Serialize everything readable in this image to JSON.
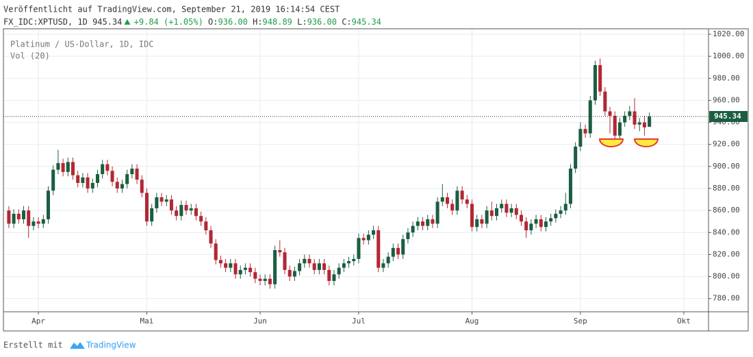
{
  "header": {
    "published": "Veröffentlicht auf TradingView.com, September 21, 2019 16:14:54 CEST",
    "symbol": "FX_IDC:XPTUSD, 1D",
    "change": "+9.84 (+1.05%)",
    "ohlc": [
      [
        "O:",
        "936.00"
      ],
      [
        "H:",
        "948.89"
      ],
      [
        "L:",
        "936.00"
      ],
      [
        "C:",
        "945.34"
      ]
    ]
  },
  "footer": {
    "prefix": "Erstellt mit",
    "brand": "TradingView"
  },
  "chart_data": {
    "type": "candlestick",
    "title": "Platinum / US-Dollar, 1D, IDC",
    "subtitle": "Vol (20)",
    "up_color": "#1b5e42",
    "down_color": "#b22833",
    "grid": true,
    "last_price": 945.34,
    "x": [
      0,
      1,
      2,
      3,
      4,
      5,
      6,
      7,
      8,
      9,
      10,
      11,
      12,
      13,
      14,
      15,
      16,
      17,
      18,
      19,
      20,
      21,
      22,
      23,
      24,
      25,
      26,
      27,
      28,
      29,
      30,
      31,
      32,
      33,
      34,
      35,
      36,
      37,
      38,
      39,
      40,
      41,
      42,
      43,
      44,
      45,
      46,
      47,
      48,
      49,
      50,
      51,
      52,
      53,
      54,
      55,
      56,
      57,
      58,
      59,
      60,
      61,
      62,
      63,
      64,
      65,
      66,
      67,
      68,
      69,
      70,
      71,
      72,
      73,
      74,
      75,
      76,
      77,
      78,
      79,
      80,
      81,
      82,
      83,
      84,
      85,
      86,
      87,
      88,
      89,
      90,
      91,
      92,
      93,
      94,
      95,
      96,
      97,
      98,
      99,
      100,
      101,
      102,
      103,
      104,
      105,
      106,
      107,
      108,
      109,
      110,
      111,
      112,
      113,
      114,
      115,
      116,
      117,
      118,
      119,
      120,
      121,
      122,
      123,
      124,
      125,
      126,
      127,
      128,
      129,
      130
    ],
    "open": [
      860,
      848,
      857,
      852,
      860,
      846,
      850,
      848,
      852,
      878,
      897,
      903,
      895,
      904,
      892,
      885,
      890,
      880,
      885,
      893,
      902,
      896,
      886,
      880,
      884,
      893,
      898,
      888,
      876,
      850,
      862,
      872,
      868,
      870,
      860,
      855,
      865,
      860,
      862,
      855,
      850,
      842,
      830,
      815,
      812,
      808,
      812,
      802,
      806,
      808,
      804,
      798,
      796,
      798,
      793,
      824,
      822,
      806,
      800,
      805,
      812,
      816,
      812,
      806,
      812,
      806,
      796,
      802,
      808,
      812,
      814,
      816,
      835,
      833,
      838,
      842,
      808,
      812,
      818,
      826,
      820,
      834,
      840,
      846,
      850,
      846,
      852,
      848,
      868,
      872,
      866,
      860,
      878,
      870,
      866,
      845,
      852,
      848,
      860,
      855,
      862,
      866,
      858,
      862,
      856,
      850,
      842,
      848,
      852,
      845,
      850,
      853,
      857,
      860,
      866,
      898,
      918,
      934,
      930,
      960,
      992,
      968,
      950,
      946,
      928,
      940,
      946,
      950,
      938,
      940,
      936
    ],
    "high": [
      864,
      861,
      861,
      864,
      864,
      854,
      854,
      856,
      882,
      901,
      915,
      907,
      908,
      908,
      896,
      894,
      894,
      889,
      897,
      906,
      906,
      900,
      890,
      888,
      897,
      902,
      902,
      892,
      880,
      866,
      876,
      876,
      874,
      874,
      864,
      869,
      869,
      866,
      866,
      859,
      854,
      846,
      834,
      819,
      816,
      816,
      816,
      810,
      812,
      812,
      808,
      802,
      802,
      802,
      828,
      833,
      826,
      810,
      809,
      816,
      820,
      820,
      816,
      816,
      816,
      810,
      806,
      812,
      816,
      818,
      820,
      839,
      839,
      842,
      846,
      846,
      816,
      822,
      830,
      830,
      838,
      844,
      850,
      854,
      854,
      856,
      856,
      872,
      884,
      876,
      870,
      882,
      882,
      874,
      870,
      856,
      856,
      864,
      868,
      866,
      870,
      870,
      866,
      866,
      860,
      854,
      852,
      856,
      856,
      854,
      857,
      861,
      864,
      876,
      902,
      922,
      940,
      938,
      964,
      996,
      998,
      972,
      954,
      950,
      944,
      950,
      955,
      962,
      944,
      946,
      948.89
    ],
    "low": [
      844,
      844,
      848,
      848,
      835,
      842,
      844,
      844,
      848,
      874,
      893,
      891,
      891,
      888,
      881,
      881,
      876,
      876,
      881,
      889,
      892,
      882,
      876,
      876,
      880,
      889,
      884,
      872,
      846,
      846,
      858,
      864,
      864,
      856,
      851,
      851,
      856,
      856,
      851,
      846,
      838,
      826,
      811,
      808,
      804,
      804,
      798,
      798,
      802,
      800,
      794,
      792,
      792,
      789,
      789,
      818,
      802,
      796,
      796,
      801,
      808,
      808,
      802,
      802,
      802,
      792,
      792,
      798,
      804,
      808,
      810,
      812,
      829,
      829,
      834,
      804,
      804,
      808,
      814,
      816,
      816,
      830,
      836,
      842,
      842,
      842,
      844,
      844,
      864,
      862,
      856,
      856,
      866,
      862,
      841,
      841,
      844,
      844,
      851,
      851,
      858,
      854,
      854,
      852,
      846,
      835,
      838,
      844,
      841,
      841,
      846,
      849,
      853,
      856,
      862,
      894,
      914,
      926,
      926,
      956,
      964,
      946,
      930,
      924,
      924,
      936,
      942,
      934,
      932,
      928,
      936
    ],
    "close": [
      848,
      857,
      852,
      860,
      846,
      850,
      848,
      852,
      878,
      897,
      903,
      895,
      904,
      892,
      885,
      890,
      880,
      885,
      893,
      902,
      896,
      886,
      880,
      884,
      893,
      898,
      888,
      876,
      850,
      862,
      872,
      868,
      870,
      860,
      855,
      865,
      860,
      862,
      855,
      850,
      842,
      830,
      815,
      812,
      808,
      812,
      802,
      806,
      808,
      804,
      798,
      796,
      798,
      793,
      824,
      822,
      806,
      800,
      805,
      812,
      816,
      812,
      806,
      812,
      806,
      796,
      802,
      808,
      812,
      814,
      816,
      835,
      833,
      838,
      842,
      808,
      812,
      818,
      826,
      820,
      834,
      840,
      846,
      850,
      846,
      852,
      848,
      868,
      872,
      866,
      860,
      878,
      870,
      866,
      845,
      852,
      848,
      860,
      855,
      862,
      866,
      858,
      862,
      856,
      850,
      842,
      848,
      852,
      845,
      850,
      853,
      857,
      860,
      866,
      898,
      918,
      934,
      930,
      960,
      992,
      968,
      950,
      946,
      928,
      940,
      946,
      950,
      938,
      940,
      935.5,
      945.34
    ],
    "xlim": [
      -1.1,
      142
    ],
    "xticks": [
      {
        "value": 6,
        "label": "Apr"
      },
      {
        "value": 28,
        "label": "Mai"
      },
      {
        "value": 51,
        "label": "Jun"
      },
      {
        "value": 71,
        "label": "Jul"
      },
      {
        "value": 94,
        "label": "Aug"
      },
      {
        "value": 116,
        "label": "Sep"
      },
      {
        "value": 137,
        "label": "Okt"
      }
    ],
    "ylim": [
      768,
      1025
    ],
    "yticks": [
      {
        "value": 780,
        "label": "780.00"
      },
      {
        "value": 800,
        "label": "800.00"
      },
      {
        "value": 820,
        "label": "820.00"
      },
      {
        "value": 840,
        "label": "840.00"
      },
      {
        "value": 860,
        "label": "860.00"
      },
      {
        "value": 880,
        "label": "880.00"
      },
      {
        "value": 900,
        "label": "900.00"
      },
      {
        "value": 920,
        "label": "920.00"
      },
      {
        "value": 940,
        "label": "940.00"
      },
      {
        "value": 960,
        "label": "960.00"
      },
      {
        "value": 980,
        "label": "980.00"
      },
      {
        "value": 1000,
        "label": "1000.00"
      },
      {
        "value": 1020,
        "label": "1020.00"
      }
    ]
  }
}
